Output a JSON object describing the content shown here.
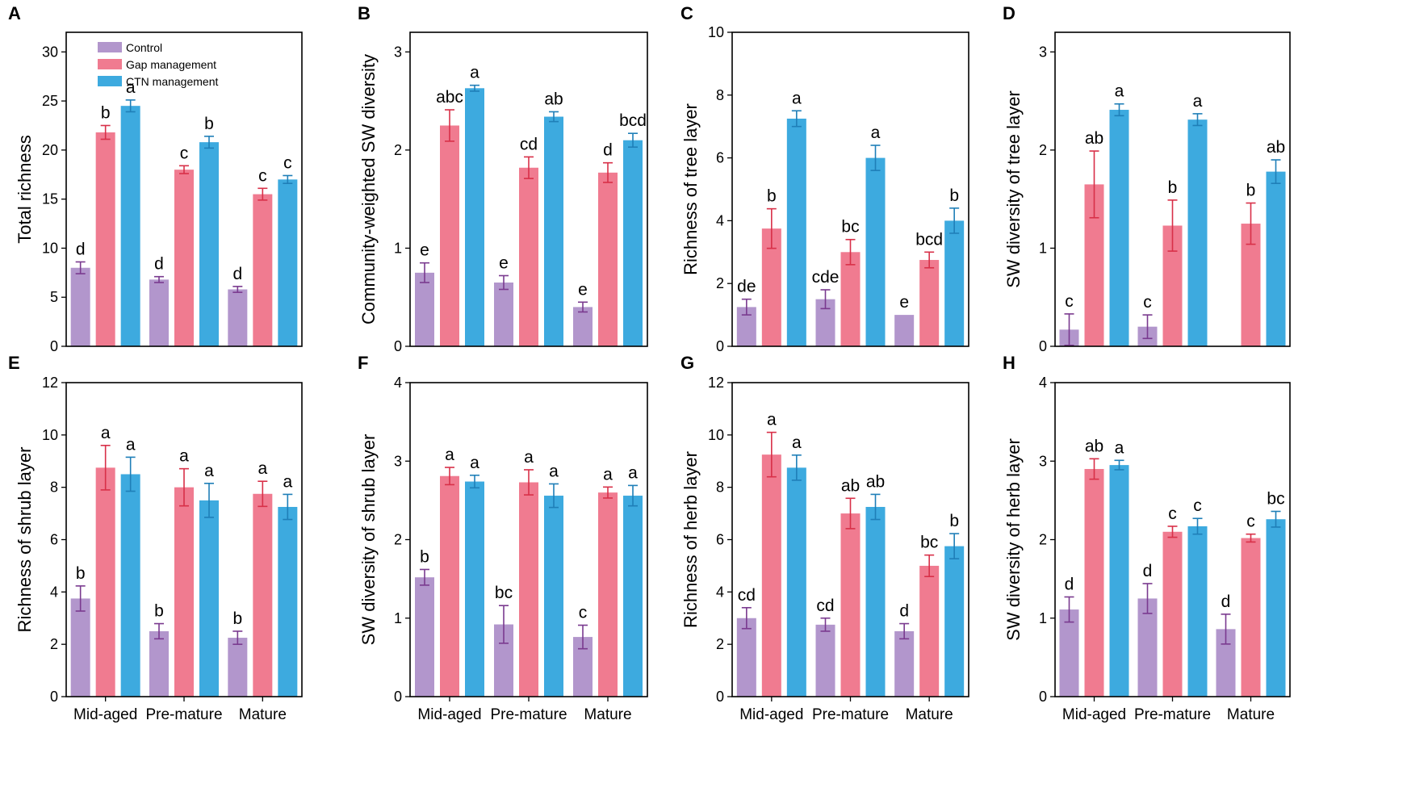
{
  "figure": {
    "categories": [
      "Mid-aged",
      "Pre-mature",
      "Mature"
    ],
    "legend": [
      {
        "name": "Control",
        "color": "#b296cc"
      },
      {
        "name": "Gap management",
        "color": "#f07b90"
      },
      {
        "name": "CTN management",
        "color": "#3daadf"
      }
    ],
    "error_colors": [
      "#7a3a8f",
      "#d83048",
      "#1f7fb8"
    ]
  },
  "chart_data": [
    {
      "panel": "A",
      "type": "bar",
      "ylabel": "Total richness",
      "ylim": [
        0,
        32
      ],
      "yticks": [
        0,
        5,
        10,
        15,
        20,
        25,
        30
      ],
      "categories": [
        "Mid-aged",
        "Pre-mature",
        "Mature"
      ],
      "series": [
        {
          "name": "Control",
          "values": [
            8.0,
            6.8,
            5.8
          ],
          "errors": [
            0.6,
            0.3,
            0.3
          ],
          "letters": [
            "d",
            "d",
            "d"
          ]
        },
        {
          "name": "Gap management",
          "values": [
            21.8,
            18.0,
            15.5
          ],
          "errors": [
            0.7,
            0.4,
            0.6
          ],
          "letters": [
            "b",
            "c",
            "c"
          ]
        },
        {
          "name": "CTN management",
          "values": [
            24.5,
            20.8,
            17.0
          ],
          "errors": [
            0.6,
            0.6,
            0.4
          ],
          "letters": [
            "a",
            "b",
            "c"
          ]
        }
      ]
    },
    {
      "panel": "B",
      "type": "bar",
      "ylabel": "Community-weighted SW diversity",
      "ylim": [
        0,
        3.2
      ],
      "yticks": [
        0,
        1,
        2,
        3
      ],
      "categories": [
        "Mid-aged",
        "Pre-mature",
        "Mature"
      ],
      "series": [
        {
          "name": "Control",
          "values": [
            0.75,
            0.65,
            0.4
          ],
          "errors": [
            0.1,
            0.07,
            0.05
          ],
          "letters": [
            "e",
            "e",
            "e"
          ]
        },
        {
          "name": "Gap management",
          "values": [
            2.25,
            1.82,
            1.77
          ],
          "errors": [
            0.16,
            0.11,
            0.1
          ],
          "letters": [
            "abc",
            "cd",
            "d"
          ]
        },
        {
          "name": "CTN management",
          "values": [
            2.63,
            2.34,
            2.1
          ],
          "errors": [
            0.03,
            0.05,
            0.07
          ],
          "letters": [
            "a",
            "ab",
            "bcd"
          ]
        }
      ]
    },
    {
      "panel": "C",
      "type": "bar",
      "ylabel": "Richness of tree layer",
      "ylim": [
        0,
        10
      ],
      "yticks": [
        0,
        2,
        4,
        6,
        8,
        10
      ],
      "categories": [
        "Mid-aged",
        "Pre-mature",
        "Mature"
      ],
      "series": [
        {
          "name": "Control",
          "values": [
            1.25,
            1.5,
            1.0
          ],
          "errors": [
            0.25,
            0.3,
            0.0
          ],
          "letters": [
            "de",
            "cde",
            "e"
          ]
        },
        {
          "name": "Gap management",
          "values": [
            3.75,
            3.0,
            2.75
          ],
          "errors": [
            0.63,
            0.4,
            0.25
          ],
          "letters": [
            "b",
            "bc",
            "bcd"
          ]
        },
        {
          "name": "CTN management",
          "values": [
            7.25,
            6.0,
            4.0
          ],
          "errors": [
            0.25,
            0.4,
            0.4
          ],
          "letters": [
            "a",
            "a",
            "b"
          ]
        }
      ]
    },
    {
      "panel": "D",
      "type": "bar",
      "ylabel": "SW diversity of tree layer",
      "ylim": [
        0,
        3.2
      ],
      "yticks": [
        0,
        1,
        2,
        3
      ],
      "categories": [
        "Mid-aged",
        "Pre-mature",
        "Mature"
      ],
      "series": [
        {
          "name": "Control",
          "values": [
            0.17,
            0.2,
            0.0
          ],
          "errors": [
            0.16,
            0.12,
            0.0
          ],
          "letters": [
            "c",
            "c",
            ""
          ]
        },
        {
          "name": "Gap management",
          "values": [
            1.65,
            1.23,
            1.25
          ],
          "errors": [
            0.34,
            0.26,
            0.21
          ],
          "letters": [
            "ab",
            "b",
            "b"
          ]
        },
        {
          "name": "CTN management",
          "values": [
            2.41,
            2.31,
            1.78
          ],
          "errors": [
            0.06,
            0.06,
            0.12
          ],
          "letters": [
            "a",
            "a",
            "ab"
          ]
        }
      ]
    },
    {
      "panel": "E",
      "type": "bar",
      "ylabel": "Richness of shrub layer",
      "ylim": [
        0,
        12
      ],
      "yticks": [
        0,
        2,
        4,
        6,
        8,
        10,
        12
      ],
      "categories": [
        "Mid-aged",
        "Pre-mature",
        "Mature"
      ],
      "series": [
        {
          "name": "Control",
          "values": [
            3.75,
            2.5,
            2.25
          ],
          "errors": [
            0.48,
            0.29,
            0.25
          ],
          "letters": [
            "b",
            "b",
            "b"
          ]
        },
        {
          "name": "Gap management",
          "values": [
            8.75,
            8.0,
            7.75
          ],
          "errors": [
            0.85,
            0.71,
            0.48
          ],
          "letters": [
            "a",
            "a",
            "a"
          ]
        },
        {
          "name": "CTN management",
          "values": [
            8.5,
            7.5,
            7.25
          ],
          "errors": [
            0.65,
            0.65,
            0.48
          ],
          "letters": [
            "a",
            "a",
            "a"
          ]
        }
      ]
    },
    {
      "panel": "F",
      "type": "bar",
      "ylabel": "SW diversity of shrub layer",
      "ylim": [
        0,
        4
      ],
      "yticks": [
        0,
        1,
        2,
        3,
        4
      ],
      "categories": [
        "Mid-aged",
        "Pre-mature",
        "Mature"
      ],
      "series": [
        {
          "name": "Control",
          "values": [
            1.52,
            0.92,
            0.76
          ],
          "errors": [
            0.1,
            0.24,
            0.15
          ],
          "letters": [
            "b",
            "bc",
            "c"
          ]
        },
        {
          "name": "Gap management",
          "values": [
            2.81,
            2.73,
            2.6
          ],
          "errors": [
            0.11,
            0.16,
            0.07
          ],
          "letters": [
            "a",
            "a",
            "a"
          ]
        },
        {
          "name": "CTN management",
          "values": [
            2.74,
            2.56,
            2.56
          ],
          "errors": [
            0.08,
            0.15,
            0.13
          ],
          "letters": [
            "a",
            "a",
            "a"
          ]
        }
      ]
    },
    {
      "panel": "G",
      "type": "bar",
      "ylabel": "Richness of herb layer",
      "ylim": [
        0,
        12
      ],
      "yticks": [
        0,
        2,
        4,
        6,
        8,
        10,
        12
      ],
      "categories": [
        "Mid-aged",
        "Pre-mature",
        "Mature"
      ],
      "series": [
        {
          "name": "Control",
          "values": [
            3.0,
            2.75,
            2.5
          ],
          "errors": [
            0.4,
            0.25,
            0.29
          ],
          "letters": [
            "cd",
            "cd",
            "d"
          ]
        },
        {
          "name": "Gap management",
          "values": [
            9.25,
            7.0,
            5.0
          ],
          "errors": [
            0.85,
            0.58,
            0.41
          ],
          "letters": [
            "a",
            "ab",
            "bc"
          ]
        },
        {
          "name": "CTN management",
          "values": [
            8.75,
            7.25,
            5.75
          ],
          "errors": [
            0.48,
            0.48,
            0.48
          ],
          "letters": [
            "a",
            "ab",
            "b"
          ]
        }
      ]
    },
    {
      "panel": "H",
      "type": "bar",
      "ylabel": "SW diversity of herb layer",
      "ylim": [
        0,
        4
      ],
      "yticks": [
        0,
        1,
        2,
        3,
        4
      ],
      "categories": [
        "Mid-aged",
        "Pre-mature",
        "Mature"
      ],
      "series": [
        {
          "name": "Control",
          "values": [
            1.11,
            1.25,
            0.86
          ],
          "errors": [
            0.16,
            0.19,
            0.19
          ],
          "letters": [
            "d",
            "d",
            "d"
          ]
        },
        {
          "name": "Gap management",
          "values": [
            2.9,
            2.1,
            2.02
          ],
          "errors": [
            0.13,
            0.07,
            0.05
          ],
          "letters": [
            "ab",
            "c",
            "c"
          ]
        },
        {
          "name": "CTN management",
          "values": [
            2.95,
            2.17,
            2.26
          ],
          "errors": [
            0.06,
            0.1,
            0.1
          ],
          "letters": [
            "a",
            "c",
            "bc"
          ]
        }
      ]
    }
  ]
}
